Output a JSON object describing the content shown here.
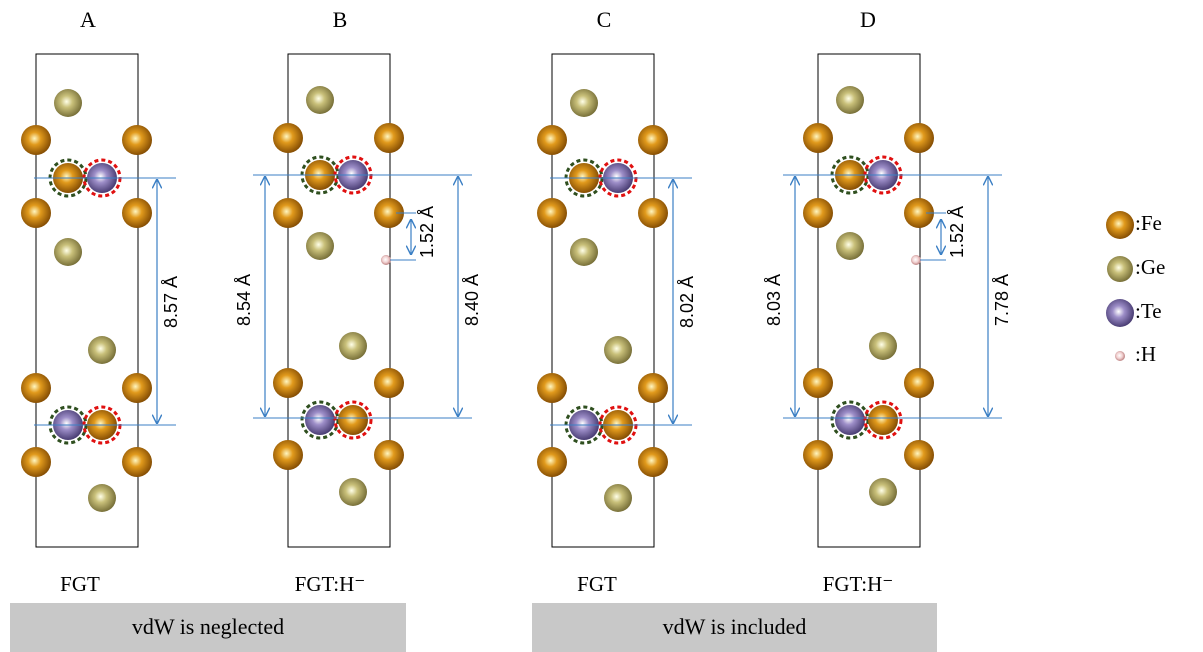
{
  "panels": [
    {
      "label": "A",
      "caption": "FGT",
      "distances": [
        "8.57 Å"
      ]
    },
    {
      "label": "B",
      "caption": "FGT:H⁻",
      "distances": [
        "8.54 Å",
        "1.52 Å",
        "8.40 Å"
      ]
    },
    {
      "label": "C",
      "caption": "FGT",
      "distances": [
        "8.02 Å"
      ]
    },
    {
      "label": "D",
      "caption": "FGT:H⁻",
      "distances": [
        "8.03 Å",
        "1.52 Å",
        "7.78 Å"
      ]
    }
  ],
  "banners": [
    "vdW is neglected",
    "vdW is included"
  ],
  "legend": [
    ":Fe",
    ":Ge",
    ":Te",
    ":H"
  ]
}
